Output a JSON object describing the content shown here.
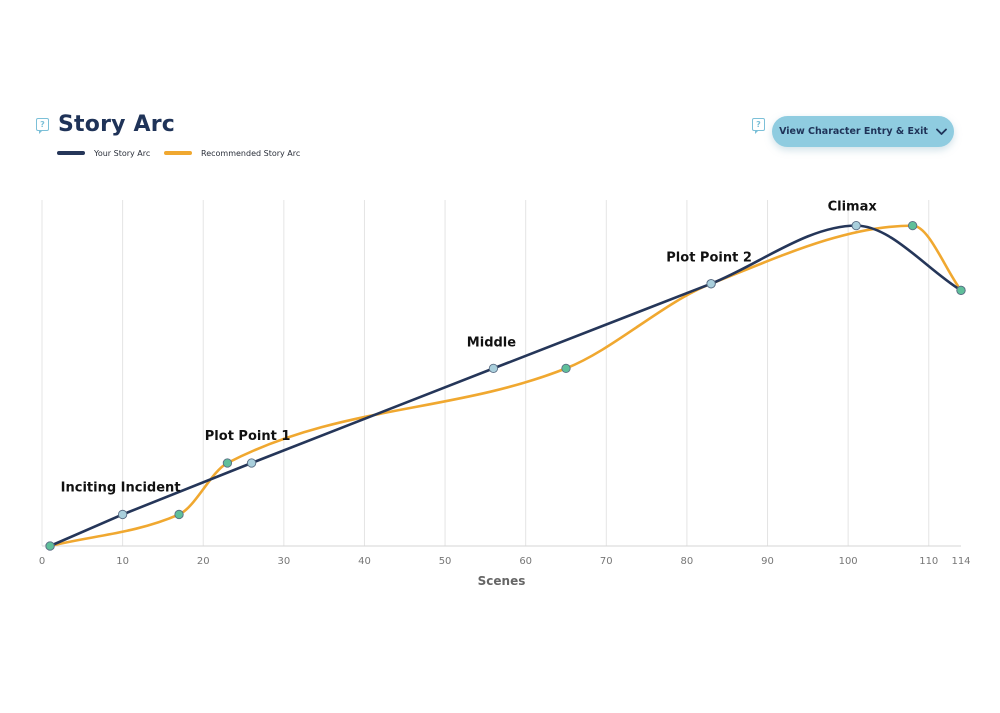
{
  "header": {
    "title": "Story Arc",
    "title_help_icon": "?",
    "button_help_icon": "?",
    "button_label": "View Character Entry & Exit",
    "button_icon": "chevron-down-icon"
  },
  "colors": {
    "your_arc": "#253659",
    "recommended_arc": "#f0a830",
    "point_your": "#a9cfdc",
    "point_recommended": "#5fbf9a",
    "button": "#8fcce0"
  },
  "chart_data": {
    "type": "line",
    "xlabel": "Scenes",
    "ylabel": "",
    "xlim": [
      0,
      114
    ],
    "ylim": [
      0,
      100
    ],
    "x_ticks": [
      0,
      10,
      20,
      30,
      40,
      50,
      60,
      70,
      80,
      90,
      100,
      110,
      114
    ],
    "grid": "vertical",
    "legend": "top-left",
    "series": [
      {
        "name": "Your Story Arc",
        "points": [
          {
            "x": 1,
            "y": 0
          },
          {
            "x": 10,
            "y": 9.5
          },
          {
            "x": 26,
            "y": 25
          },
          {
            "x": 56,
            "y": 53.5
          },
          {
            "x": 83,
            "y": 79
          },
          {
            "x": 101,
            "y": 96.5
          },
          {
            "x": 114,
            "y": 77
          }
        ]
      },
      {
        "name": "Recommended Story Arc",
        "points": [
          {
            "x": 1,
            "y": 0
          },
          {
            "x": 17,
            "y": 9.5
          },
          {
            "x": 23,
            "y": 25
          },
          {
            "x": 65,
            "y": 53.5
          },
          {
            "x": 83,
            "y": 79
          },
          {
            "x": 108,
            "y": 96.5
          },
          {
            "x": 114,
            "y": 77
          }
        ]
      }
    ],
    "annotations": [
      {
        "label": "Inciting Incident",
        "x": 10,
        "y": 9.5
      },
      {
        "label": "Plot Point 1",
        "x": 26,
        "y": 25
      },
      {
        "label": "Middle",
        "x": 56,
        "y": 53.5
      },
      {
        "label": "Plot Point 2",
        "x": 83,
        "y": 79
      },
      {
        "label": "Climax",
        "x": 101,
        "y": 96.5
      }
    ]
  }
}
